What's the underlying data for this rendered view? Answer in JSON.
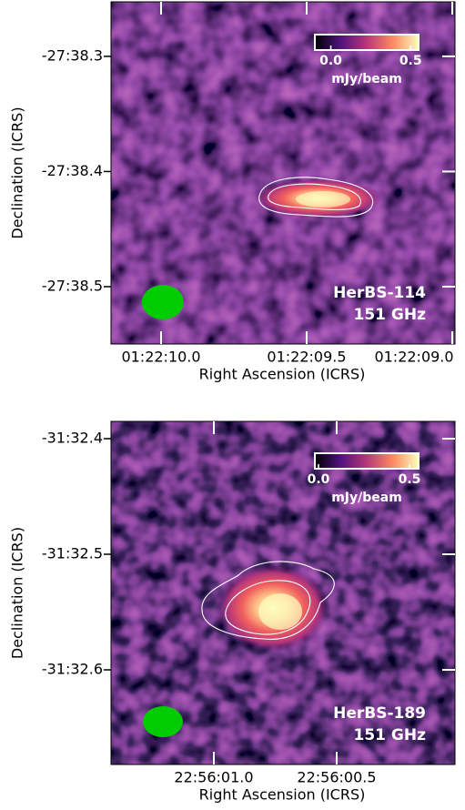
{
  "chart_data": [
    {
      "type": "image",
      "xlabel": "Right Ascension (ICRS)",
      "ylabel": "Declination (ICRS)",
      "xlim": [
        20.5423829,
        20.5374608
      ],
      "xticks": [
        {
          "value": 20.5416667,
          "label": "01:22:10.0"
        },
        {
          "value": 20.5395833,
          "label": "01:22:09.5"
        },
        {
          "value": 20.5375,
          "label": "01:22:09.0"
        }
      ],
      "ylim": [
        -27.642497,
        -27.637544
      ],
      "yticks": [
        {
          "value": -27.6383333,
          "label": "-27:38.3"
        },
        {
          "value": -27.64,
          "label": "-27:38.4"
        },
        {
          "value": -27.6416667,
          "label": "-27:38.5"
        }
      ],
      "colorbar": {
        "label": "mJy/beam",
        "lim": [
          -0.1,
          0.55
        ],
        "ticks": [
          {
            "value": 0,
            "label": "0.0"
          },
          0.5
        ]
      },
      "annotations": [
        "HerBS-114",
        "151 GHz"
      ]
    },
    {
      "type": "image",
      "xlabel": "Right Ascension (ICRS)",
      "ylabel": "Declination (ICRS)",
      "xlim": [
        344.0059105,
        344.0000771
      ],
      "xticks": [
        {
          "value": 344.0041667,
          "label": "22:56:01.0"
        },
        {
          "value": 344.0020833,
          "label": "22:56:00.5"
        }
      ],
      "ylim": [
        -31.544698,
        -31.5397507
      ],
      "yticks": [
        {
          "value": -31.54,
          "label": "-31:32.4"
        },
        {
          "value": -31.5416667,
          "label": "-31:32.5"
        },
        {
          "value": -31.5433333,
          "label": "-31:32.6"
        }
      ],
      "colorbar": {
        "label": "mJy/beam",
        "lim": [
          -0.02,
          0.55
        ],
        "ticks": [
          {
            "value": 0,
            "label": "0.0"
          },
          0.5
        ]
      },
      "annotations": [
        "HerBS-189",
        "151 GHz"
      ]
    }
  ]
}
